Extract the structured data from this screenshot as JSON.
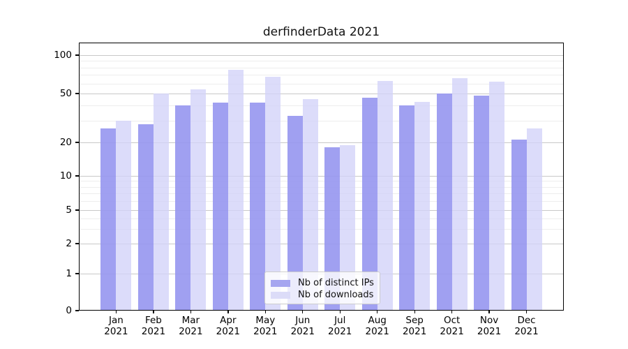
{
  "figure": {
    "title": "derfinderData 2021"
  },
  "chart_data": {
    "type": "bar",
    "title": "derfinderData 2021",
    "x": {
      "months": [
        "Jan",
        "Feb",
        "Mar",
        "Apr",
        "May",
        "Jun",
        "Jul",
        "Aug",
        "Sep",
        "Oct",
        "Nov",
        "Dec"
      ],
      "year": "2021"
    },
    "series": [
      {
        "name": "Nb of distinct IPs",
        "color": "rgba(150,150,240,0.9)",
        "swatch_color": "#a6a6f0",
        "values": [
          26,
          28,
          40,
          42,
          42,
          33,
          18,
          46,
          40,
          50,
          48,
          21
        ]
      },
      {
        "name": "Nb of downloads",
        "color": "rgba(210,210,249,0.78)",
        "swatch_color": "#dcdcf8",
        "values": [
          30,
          50,
          54,
          77,
          68,
          45,
          19,
          63,
          43,
          66,
          62,
          26
        ]
      }
    ],
    "y_axis": {
      "scale": "log (with 0 baseline)",
      "ticks": [
        100,
        50,
        20,
        10,
        5,
        2,
        1,
        0
      ],
      "minor_gridlines": [
        90,
        80,
        70,
        60,
        40,
        30,
        9,
        8,
        7,
        6,
        4,
        3
      ],
      "ylim": [
        0,
        125
      ]
    },
    "grid": true,
    "legend": {
      "position": "bottom-center",
      "entries": [
        "Nb of distinct IPs",
        "Nb of downloads"
      ]
    }
  }
}
